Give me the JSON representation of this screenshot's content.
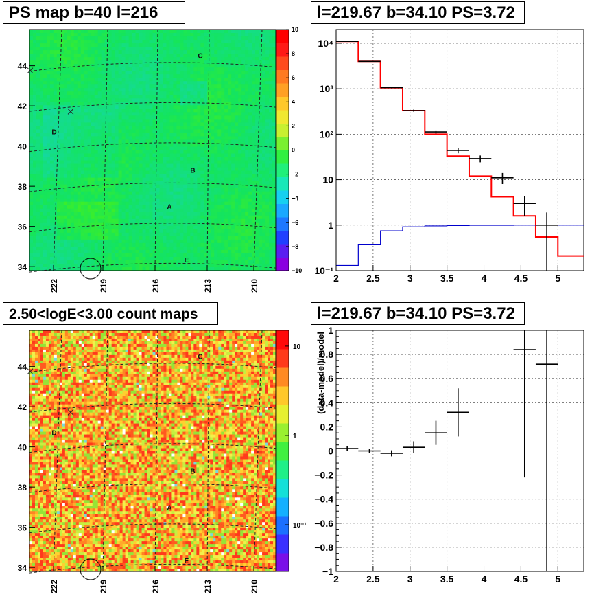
{
  "panels": {
    "ps_map": {
      "title": "PS map b=40 l=216",
      "x_ticks": [
        "222",
        "219",
        "216",
        "213",
        "210"
      ],
      "y_ticks": [
        "34",
        "36",
        "38",
        "40",
        "42",
        "44"
      ],
      "colorbar_ticks": [
        "−10",
        "−8",
        "−6",
        "−4",
        "−2",
        "0",
        "2",
        "4",
        "6",
        "8",
        "10"
      ],
      "markers": [
        "A",
        "B",
        "C",
        "D",
        "E"
      ],
      "base_color": "#1ee85c"
    },
    "count_map": {
      "title": "2.50<logE<3.00 count maps",
      "x_ticks": [
        "222",
        "219",
        "216",
        "213",
        "210"
      ],
      "y_ticks": [
        "34",
        "36",
        "38",
        "40",
        "42",
        "44"
      ],
      "colorbar_ticks": [
        "10",
        "1",
        "10⁻¹"
      ],
      "markers": [
        "A",
        "B",
        "C",
        "D",
        "E"
      ]
    },
    "spectrum": {
      "title": "l=219.67 b=34.10 PS=3.72",
      "x_ticks": [
        "2",
        "2.5",
        "3",
        "3.5",
        "4",
        "4.5",
        "5"
      ],
      "y_ticks": [
        "10⁻¹",
        "1",
        "10",
        "10²",
        "10³",
        "10⁴"
      ]
    },
    "residual": {
      "title": "l=219.67 b=34.10 PS=3.72",
      "ylabel": "(data-model)/model",
      "x_ticks": [
        "2",
        "2.5",
        "3",
        "3.5",
        "4",
        "4.5",
        "5"
      ],
      "y_ticks": [
        "−1",
        "−0.8",
        "−0.6",
        "−0.4",
        "−0.2",
        "0",
        "0.2",
        "0.4",
        "0.6",
        "0.8",
        "1"
      ]
    }
  },
  "chart_data": [
    {
      "type": "heatmap",
      "title": "PS map b=40 l=216",
      "xlabel": "",
      "ylabel": "",
      "xlim": [
        224,
        208
      ],
      "ylim": [
        33.8,
        45.8
      ],
      "zlim": [
        -10,
        10
      ],
      "x_ticks": [
        222,
        219,
        216,
        213,
        210
      ],
      "y_ticks": [
        34,
        36,
        38,
        40,
        42,
        44
      ],
      "colorbar_ticks": [
        -10,
        -8,
        -6,
        -4,
        -2,
        0,
        2,
        4,
        6,
        8,
        10
      ],
      "markers": [
        "A",
        "B",
        "C",
        "D",
        "E"
      ]
    },
    {
      "type": "heatmap",
      "title": "2.50<logE<3.00 count maps",
      "xlabel": "",
      "ylabel": "",
      "xlim": [
        224,
        208
      ],
      "ylim": [
        33.8,
        45.8
      ],
      "colorscale": "log",
      "zlim": [
        0.03,
        15
      ],
      "x_ticks": [
        222,
        219,
        216,
        213,
        210
      ],
      "y_ticks": [
        34,
        36,
        38,
        40,
        42,
        44
      ],
      "colorbar_ticks": [
        10,
        1,
        0.1
      ],
      "markers": [
        "A",
        "B",
        "C",
        "D",
        "E"
      ]
    },
    {
      "type": "line",
      "title": "l=219.67 b=34.10 PS=3.72",
      "xlabel": "",
      "ylabel": "",
      "xlim": [
        2,
        5.35
      ],
      "ylim": [
        0.1,
        20000
      ],
      "yscale": "log",
      "grid": true,
      "x_ticks": [
        2,
        2.5,
        3,
        3.5,
        4,
        4.5,
        5
      ],
      "y_ticks": [
        0.1,
        1,
        10,
        100,
        1000,
        10000
      ],
      "series": [
        {
          "kind": "step",
          "color": "#ff0000",
          "bin_edges": [
            2.0,
            2.3,
            2.6,
            2.9,
            3.2,
            3.5,
            3.8,
            4.1,
            4.4,
            4.7,
            5.0,
            5.35
          ],
          "values": [
            11000,
            4000,
            1050,
            330,
            100,
            33,
            12,
            4.2,
            1.6,
            0.55,
            0.21
          ]
        },
        {
          "kind": "step",
          "color": "#0000cc",
          "bin_edges": [
            2.0,
            2.3,
            2.6,
            2.9,
            3.2,
            3.5,
            3.8,
            4.1,
            4.4,
            4.7,
            5.0,
            5.35
          ],
          "values": [
            0.13,
            0.38,
            0.75,
            0.92,
            0.96,
            0.98,
            0.99,
            0.99,
            1.0,
            1.0,
            1.0
          ]
        },
        {
          "kind": "errorbar",
          "color": "#000000",
          "x": [
            2.15,
            2.45,
            2.75,
            3.05,
            3.35,
            3.65,
            3.95,
            4.25,
            4.55,
            4.85
          ],
          "x_err": [
            0.15,
            0.15,
            0.15,
            0.15,
            0.15,
            0.15,
            0.15,
            0.15,
            0.15,
            0.15
          ],
          "y": [
            11000,
            4000,
            1060,
            330,
            112,
            44,
            29,
            11,
            3.0,
            1.0
          ],
          "y_err_low": [
            100,
            60,
            30,
            18,
            9,
            6,
            5,
            3,
            1.4,
            0.9
          ],
          "y_err_high": [
            100,
            60,
            30,
            18,
            9,
            6,
            5,
            3,
            1.4,
            0.9
          ]
        }
      ]
    },
    {
      "type": "scatter",
      "title": "l=219.67 b=34.10 PS=3.72",
      "xlabel": "",
      "ylabel": "(data-model)/model",
      "xlim": [
        2,
        5.35
      ],
      "ylim": [
        -1,
        1
      ],
      "grid": true,
      "x_ticks": [
        2,
        2.5,
        3,
        3.5,
        4,
        4.5,
        5
      ],
      "y_ticks": [
        -1,
        -0.8,
        -0.6,
        -0.4,
        -0.2,
        0,
        0.2,
        0.4,
        0.6,
        0.8,
        1
      ],
      "series": [
        {
          "kind": "errorbar",
          "color": "#000000",
          "x": [
            2.15,
            2.45,
            2.75,
            3.05,
            3.35,
            3.65,
            4.55,
            4.85
          ],
          "x_err": [
            0.15,
            0.15,
            0.15,
            0.15,
            0.15,
            0.15,
            0.15,
            0.15
          ],
          "y": [
            0.02,
            0.0,
            -0.02,
            0.03,
            0.15,
            0.32,
            0.84,
            0.72
          ],
          "y_err_low": [
            0.02,
            0.02,
            0.025,
            0.05,
            0.1,
            0.2,
            1.06,
            1.72
          ],
          "y_err_high": [
            0.02,
            0.02,
            0.025,
            0.05,
            0.1,
            0.2,
            0.16,
            0.28
          ]
        }
      ]
    }
  ]
}
